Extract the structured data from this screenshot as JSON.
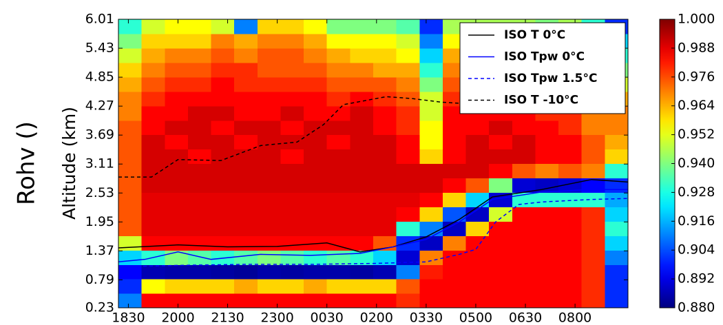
{
  "chart_data": {
    "type": "heatmap",
    "title": "Rohv ()",
    "ylabel": "Altitude (km)",
    "colormap": "jet",
    "clim": [
      0.88,
      1.0
    ],
    "cticks": [
      {
        "value": 0.88,
        "label": "0.880"
      },
      0.892,
      0.904,
      0.916,
      0.928,
      {
        "value": 0.94,
        "label": "0.940"
      },
      0.952,
      0.964,
      0.976,
      0.988,
      {
        "value": 1.0,
        "label": "1.000"
      }
    ],
    "xlim": [
      18.2,
      33.6
    ],
    "xticks": [
      {
        "value": 18.5,
        "label": "1830"
      },
      {
        "value": 20,
        "label": "2000"
      },
      {
        "value": 21.5,
        "label": "2130"
      },
      {
        "value": 23,
        "label": "2300"
      },
      {
        "value": 24.5,
        "label": "0030"
      },
      {
        "value": 26,
        "label": "0200"
      },
      {
        "value": 27.5,
        "label": "0330"
      },
      {
        "value": 29,
        "label": "0500"
      },
      {
        "value": 30.5,
        "label": "0630"
      },
      {
        "value": 32,
        "label": "0800"
      }
    ],
    "ylim": [
      0.23,
      6.01
    ],
    "yticks": [
      0.23,
      0.79,
      1.37,
      1.95,
      2.53,
      3.11,
      3.69,
      4.27,
      4.85,
      5.43,
      6.01
    ],
    "grid": false,
    "legend": "upper right",
    "xbins": [
      18.2,
      18.9,
      19.6,
      20.3,
      21.0,
      21.7,
      22.4,
      23.1,
      23.8,
      24.5,
      25.2,
      25.9,
      26.6,
      27.3,
      28.0,
      28.7,
      29.4,
      30.1,
      30.8,
      31.5,
      32.2,
      32.9,
      33.6
    ],
    "ybins": [
      0.23,
      0.519,
      0.808,
      1.097,
      1.386,
      1.675,
      1.964,
      2.253,
      2.542,
      2.831,
      3.12,
      3.409,
      3.698,
      3.987,
      4.276,
      4.565,
      4.854,
      5.143,
      5.432,
      5.721,
      6.01
    ],
    "z": [
      [
        0.91,
        0.985,
        0.985,
        0.985,
        0.985,
        0.985,
        0.985,
        0.985,
        0.985,
        0.985,
        0.985,
        0.985,
        0.98,
        0.985,
        0.985,
        0.985,
        0.985,
        0.985,
        0.985,
        0.985,
        0.98,
        0.9
      ],
      [
        0.9,
        0.955,
        0.96,
        0.96,
        0.96,
        0.965,
        0.96,
        0.96,
        0.965,
        0.96,
        0.96,
        0.96,
        0.975,
        0.985,
        0.985,
        0.985,
        0.985,
        0.985,
        0.985,
        0.985,
        0.98,
        0.9
      ],
      [
        0.895,
        0.886,
        0.885,
        0.885,
        0.884,
        0.883,
        0.885,
        0.884,
        0.885,
        0.885,
        0.884,
        0.886,
        0.91,
        0.982,
        0.985,
        0.985,
        0.985,
        0.985,
        0.985,
        0.985,
        0.98,
        0.9
      ],
      [
        0.92,
        0.93,
        0.94,
        0.935,
        0.93,
        0.935,
        0.94,
        0.935,
        0.93,
        0.935,
        0.93,
        0.92,
        0.89,
        0.97,
        0.985,
        0.985,
        0.985,
        0.985,
        0.985,
        0.985,
        0.98,
        0.91
      ],
      [
        0.95,
        0.985,
        0.985,
        0.985,
        0.985,
        0.985,
        0.985,
        0.985,
        0.985,
        0.985,
        0.985,
        0.975,
        0.9,
        0.888,
        0.97,
        0.985,
        0.985,
        0.985,
        0.985,
        0.985,
        0.98,
        0.92
      ],
      [
        0.975,
        0.988,
        0.988,
        0.988,
        0.988,
        0.988,
        0.988,
        0.988,
        0.988,
        0.988,
        0.988,
        0.988,
        0.93,
        0.91,
        0.888,
        0.96,
        0.985,
        0.985,
        0.985,
        0.985,
        0.98,
        0.93
      ],
      [
        0.975,
        0.988,
        0.988,
        0.988,
        0.988,
        0.988,
        0.988,
        0.988,
        0.988,
        0.988,
        0.988,
        0.988,
        0.985,
        0.96,
        0.905,
        0.888,
        0.95,
        0.985,
        0.985,
        0.985,
        0.98,
        0.92
      ],
      [
        0.975,
        0.988,
        0.988,
        0.988,
        0.988,
        0.988,
        0.988,
        0.988,
        0.988,
        0.988,
        0.988,
        0.988,
        0.988,
        0.985,
        0.96,
        0.92,
        0.89,
        0.93,
        0.93,
        0.93,
        0.93,
        0.915
      ],
      [
        0.975,
        0.99,
        0.99,
        0.99,
        0.99,
        0.99,
        0.99,
        0.99,
        0.99,
        0.99,
        0.99,
        0.99,
        0.99,
        0.99,
        0.985,
        0.975,
        0.94,
        0.89,
        0.888,
        0.89,
        0.895,
        0.9
      ],
      [
        0.975,
        0.99,
        0.99,
        0.99,
        0.99,
        0.99,
        0.99,
        0.99,
        0.99,
        0.99,
        0.99,
        0.99,
        0.99,
        0.99,
        0.99,
        0.99,
        0.985,
        0.975,
        0.97,
        0.975,
        0.97,
        0.93
      ],
      [
        0.975,
        0.99,
        0.99,
        0.985,
        0.99,
        0.99,
        0.99,
        0.985,
        0.99,
        0.99,
        0.99,
        0.99,
        0.985,
        0.96,
        0.985,
        0.99,
        0.99,
        0.99,
        0.985,
        0.985,
        0.975,
        0.96
      ],
      [
        0.975,
        0.99,
        0.985,
        0.99,
        0.99,
        0.985,
        0.99,
        0.99,
        0.99,
        0.985,
        0.99,
        0.99,
        0.985,
        0.955,
        0.985,
        0.99,
        0.985,
        0.99,
        0.985,
        0.985,
        0.975,
        0.965
      ],
      [
        0.975,
        0.985,
        0.99,
        0.99,
        0.985,
        0.99,
        0.99,
        0.985,
        0.99,
        0.99,
        0.99,
        0.985,
        0.98,
        0.955,
        0.985,
        0.985,
        0.99,
        0.985,
        0.985,
        0.98,
        0.97,
        0.97
      ],
      [
        0.97,
        0.985,
        0.985,
        0.99,
        0.99,
        0.985,
        0.985,
        0.99,
        0.985,
        0.985,
        0.99,
        0.985,
        0.98,
        0.95,
        0.985,
        0.985,
        0.985,
        0.985,
        0.98,
        0.98,
        0.97,
        0.97
      ],
      [
        0.97,
        0.98,
        0.985,
        0.985,
        0.985,
        0.985,
        0.985,
        0.985,
        0.985,
        0.98,
        0.985,
        0.98,
        0.975,
        0.95,
        0.98,
        0.98,
        0.98,
        0.985,
        0.98,
        0.975,
        0.97,
        0.965
      ],
      [
        0.965,
        0.975,
        0.98,
        0.98,
        0.985,
        0.98,
        0.98,
        0.98,
        0.98,
        0.975,
        0.975,
        0.975,
        0.97,
        0.94,
        0.975,
        0.975,
        0.98,
        0.98,
        0.975,
        0.975,
        0.965,
        0.95
      ],
      [
        0.96,
        0.97,
        0.975,
        0.975,
        0.98,
        0.98,
        0.975,
        0.975,
        0.975,
        0.97,
        0.97,
        0.965,
        0.965,
        0.93,
        0.97,
        0.975,
        0.975,
        0.97,
        0.97,
        0.97,
        0.96,
        0.94
      ],
      [
        0.95,
        0.965,
        0.97,
        0.97,
        0.975,
        0.97,
        0.975,
        0.975,
        0.97,
        0.965,
        0.96,
        0.96,
        0.955,
        0.92,
        0.965,
        0.965,
        0.965,
        0.965,
        0.965,
        0.965,
        0.955,
        0.93
      ],
      [
        0.94,
        0.96,
        0.96,
        0.96,
        0.97,
        0.965,
        0.97,
        0.97,
        0.965,
        0.955,
        0.955,
        0.955,
        0.95,
        0.91,
        0.955,
        0.955,
        0.955,
        0.96,
        0.955,
        0.955,
        0.95,
        0.92
      ],
      [
        0.93,
        0.95,
        0.955,
        0.955,
        0.95,
        0.91,
        0.96,
        0.96,
        0.955,
        0.94,
        0.94,
        0.94,
        0.935,
        0.9,
        0.945,
        0.945,
        0.945,
        0.945,
        0.94,
        0.945,
        0.93,
        0.9
      ]
    ],
    "series": [
      {
        "name": "ISO T 0°C",
        "color": "#000000",
        "dashed": false,
        "x": [
          18.2,
          20,
          21.5,
          23,
          24.5,
          25.5,
          26.5,
          27.5,
          28.5,
          29.5,
          31,
          32.5,
          33.6
        ],
        "values": [
          1.43,
          1.49,
          1.45,
          1.46,
          1.53,
          1.35,
          1.45,
          1.65,
          2.0,
          2.45,
          2.6,
          2.8,
          2.75
        ]
      },
      {
        "name": "ISO Tpw 0°C",
        "color": "#0000ff",
        "dashed": false,
        "x": [
          18.2,
          19,
          20,
          21,
          22.5,
          24,
          25.5,
          26.5,
          27.5,
          28.5,
          29.5,
          31,
          32.5,
          33.6
        ],
        "values": [
          1.15,
          1.2,
          1.35,
          1.2,
          1.3,
          1.28,
          1.32,
          1.45,
          1.6,
          1.95,
          2.4,
          2.55,
          2.6,
          2.6
        ]
      },
      {
        "name": "ISO Tpw 1.5°C",
        "color": "#0000ff",
        "dashed": true,
        "x": [
          18.2,
          20,
          22,
          24,
          26,
          27.5,
          28.5,
          29,
          29.6,
          30.3,
          31,
          32.5,
          33.6
        ],
        "values": [
          1.05,
          1.08,
          1.1,
          1.1,
          1.12,
          1.15,
          1.3,
          1.4,
          1.95,
          2.3,
          2.35,
          2.4,
          2.42
        ]
      },
      {
        "name": "ISO T -10°C",
        "color": "#000000",
        "dashed": true,
        "x": [
          18.2,
          19.2,
          20,
          21.3,
          22.5,
          23.6,
          24.4,
          25,
          26.3,
          27.1,
          27.95,
          29.2
        ],
        "values": [
          2.85,
          2.85,
          3.2,
          3.18,
          3.48,
          3.55,
          3.9,
          4.3,
          4.46,
          4.42,
          4.35,
          4.3
        ]
      }
    ]
  }
}
